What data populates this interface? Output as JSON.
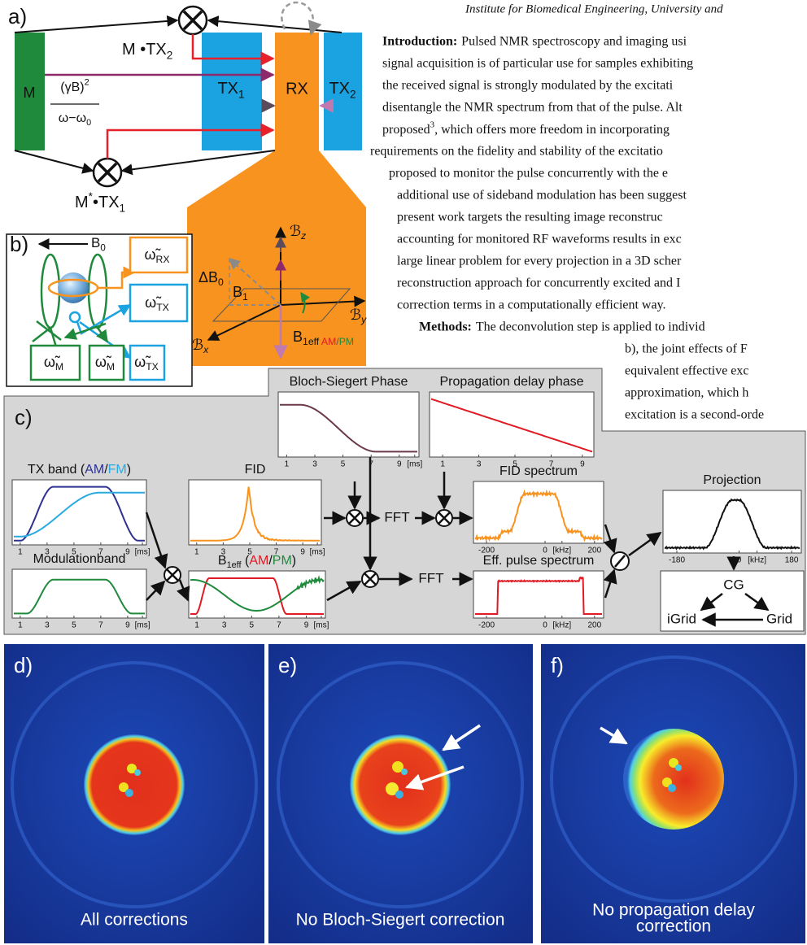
{
  "header": "Institute for Biomedical Engineering, University and",
  "introduction": {
    "heading": "Introduction:",
    "lines": [
      "Pulsed NMR spectroscopy and imaging usi",
      "signal acquisition is of particular use for samples exhibiting",
      "the received signal is strongly modulated by the excitati",
      "disentangle the NMR spectrum from that of the pulse. Alt",
      [
        {
          "text": "proposed"
        },
        {
          "text": "3",
          "sup": true
        },
        {
          "text": ", which offers more freedom in incorporating"
        }
      ],
      "requirements on the fidelity and stability of the excitatio",
      "proposed to monitor the pulse concurrently with the e",
      "additional use of sideband modulation has been suggest",
      "present work targets the resulting image reconstruc",
      "accounting for monitored RF waveforms results in exc",
      "large linear problem for every projection in a 3D scher",
      "reconstruction approach for concurrently excited and I",
      "correction terms in a computationally efficient way."
    ]
  },
  "methods": {
    "heading": "Methods:",
    "lines": [
      "The deconvolution step is applied to individ",
      "b), the joint effects of F",
      "equivalent effective exc",
      "approximation, which h",
      "excitation is a second-orde"
    ]
  },
  "panel_a": {
    "label": "a)",
    "m": "M",
    "gamma": [
      {
        "text": "(γB)"
      },
      {
        "text": "2",
        "sup": true
      }
    ],
    "omega": [
      {
        "text": "ω−ω"
      },
      {
        "text": "0",
        "sub": true
      }
    ],
    "tx1": [
      {
        "text": "TX"
      },
      {
        "text": "1",
        "sub": true
      }
    ],
    "rx": "RX",
    "tx2": [
      {
        "text": "TX"
      },
      {
        "text": "2",
        "sub": true
      }
    ],
    "m_tx2": [
      {
        "text": "M •TX"
      },
      {
        "text": "2",
        "sub": true
      }
    ],
    "m_tx1": [
      {
        "text": "M"
      },
      {
        "text": "*",
        "sup": true
      },
      {
        "text": "•TX"
      },
      {
        "text": "1",
        "sub": true
      }
    ],
    "bz": [
      {
        "text": "ℬ"
      },
      {
        "text": "z",
        "sub": true
      }
    ],
    "by": [
      {
        "text": "ℬ"
      },
      {
        "text": "y",
        "sub": true
      }
    ],
    "bx": [
      {
        "text": "ℬ"
      },
      {
        "text": "x",
        "sub": true
      }
    ],
    "db0": [
      {
        "text": "ΔB"
      },
      {
        "text": "0",
        "sub": true
      }
    ],
    "b1": [
      {
        "text": "B"
      },
      {
        "text": "1",
        "sub": true
      }
    ],
    "b1eff": [
      {
        "text": "B"
      },
      {
        "text": "1eff",
        "sub": true
      },
      {
        "text": " AM",
        "sub": true,
        "color": "#e01b24"
      },
      {
        "text": "/",
        "sub": true,
        "color": "#555555"
      },
      {
        "text": "PM",
        "sub": true,
        "color": "#1f8a3c"
      }
    ]
  },
  "panel_b": {
    "label": "b)",
    "b0": [
      {
        "text": "B"
      },
      {
        "text": "0",
        "sub": true
      }
    ],
    "w_rx": [
      {
        "text": "ω̃"
      },
      {
        "text": "RX",
        "sub": true
      }
    ],
    "w_tx": [
      {
        "text": "ω̃"
      },
      {
        "text": "TX",
        "sub": true
      }
    ],
    "w_m1": [
      {
        "text": "ω̃"
      },
      {
        "text": "M",
        "sub": true
      }
    ],
    "w_m2": [
      {
        "text": "ω̃"
      },
      {
        "text": "M",
        "sub": true
      }
    ],
    "w_tx2": [
      {
        "text": "ω̃"
      },
      {
        "text": "TX",
        "sub": true
      }
    ]
  },
  "panel_c": {
    "label": "c)",
    "plots": {
      "bloch_siegert": {
        "title": "Bloch-Siegert Phase",
        "ticks": [
          "1",
          "3",
          "5",
          "7",
          "9",
          "[ms]"
        ]
      },
      "propagation": {
        "title": "Propagation delay phase",
        "ticks": [
          "1",
          "3",
          "5",
          "7",
          "9"
        ]
      },
      "tx_band": {
        "title": [
          {
            "text": "TX band ("
          },
          {
            "text": "AM",
            "color": "#2e3192"
          },
          {
            "text": "/"
          },
          {
            "text": "FM",
            "color": "#29abe2"
          },
          {
            "text": ")"
          }
        ],
        "ticks": [
          "1",
          "3",
          "5",
          "7",
          "9",
          "[ms]"
        ]
      },
      "fid": {
        "title": "FID",
        "ticks": [
          "1",
          "3",
          "5",
          "7",
          "9",
          "[ms]"
        ]
      },
      "fid_spectrum": {
        "title": "FID spectrum",
        "ticks": [
          "-200",
          "0",
          "[kHz]",
          "200"
        ]
      },
      "projection": {
        "title": "Projection",
        "ticks": [
          "-180",
          "0",
          "[kHz]",
          "180"
        ]
      },
      "modulation": {
        "title": "Modulationband",
        "ticks": [
          "1",
          "3",
          "5",
          "7",
          "9",
          "[ms]"
        ]
      },
      "b1eff": {
        "title": [
          {
            "text": "B"
          },
          {
            "text": "1eff",
            "sub": true
          },
          {
            "text": " ("
          },
          {
            "text": "AM",
            "color": "#e01b24"
          },
          {
            "text": "/"
          },
          {
            "text": "PM",
            "color": "#1f8a3c"
          },
          {
            "text": ")"
          }
        ],
        "ticks": [
          "1",
          "3",
          "5",
          "7",
          "9",
          "[ms]"
        ]
      },
      "eff_pulse": {
        "title": "Eff. pulse spectrum",
        "ticks": [
          "-200",
          "0",
          "[kHz]",
          "200"
        ]
      }
    },
    "fft": [
      "FFT",
      "FFT"
    ],
    "cg": "CG",
    "igrid": "iGrid",
    "grid": "Grid"
  },
  "panel_d": {
    "label": "d)",
    "caption": [
      "All corrections"
    ]
  },
  "panel_e": {
    "label": "e)",
    "caption": [
      "No Bloch-Siegert correction"
    ]
  },
  "panel_f": {
    "label": "f)",
    "caption": [
      "No propagation delay",
      "correction"
    ]
  }
}
